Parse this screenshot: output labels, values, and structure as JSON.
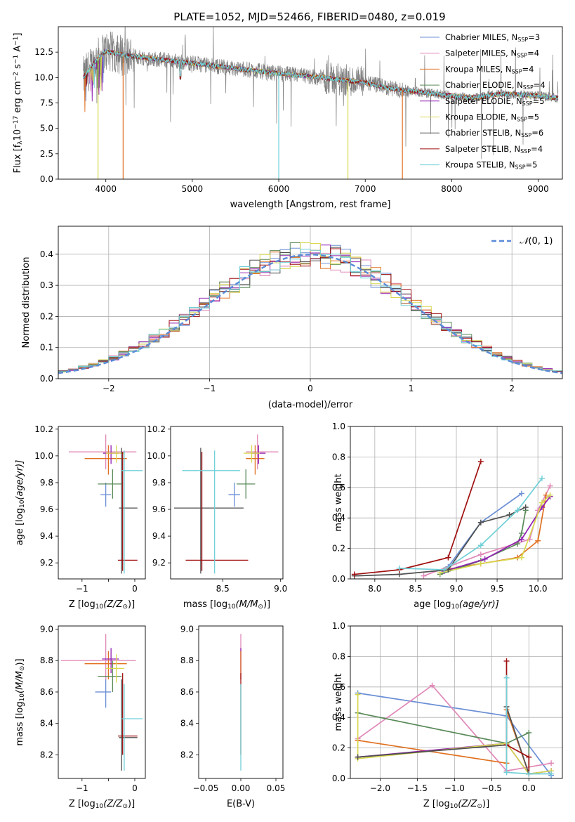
{
  "figure_title": "PLATE=1052, MJD=52466, FIBERID=0480, z=0.019",
  "models": [
    {
      "imf": "Chabrier",
      "lib": "MILES",
      "n": "3",
      "color": "#6b8fd6"
    },
    {
      "imf": "Salpeter",
      "lib": "MILES",
      "n": "4",
      "color": "#e088b8"
    },
    {
      "imf": "Kroupa",
      "lib": "MILES",
      "n": "4",
      "color": "#e07020"
    },
    {
      "imf": "Chabrier",
      "lib": "ELODIE",
      "n": "4",
      "color": "#5a8a5a"
    },
    {
      "imf": "Salpeter",
      "lib": "ELODIE",
      "n": "5",
      "color": "#9020b0"
    },
    {
      "imf": "Kroupa",
      "lib": "ELODIE",
      "n": "5",
      "color": "#d8d850"
    },
    {
      "imf": "Chabrier",
      "lib": "STELIB",
      "n": "6",
      "color": "#505050"
    },
    {
      "imf": "Salpeter",
      "lib": "STELIB",
      "n": "4",
      "color": "#a01010"
    },
    {
      "imf": "Kroupa",
      "lib": "STELIB",
      "n": "5",
      "color": "#70d0d8"
    }
  ],
  "chart_data": [
    {
      "type": "line",
      "xlabel": "wavelength [Angstrom, rest frame]",
      "ylabel_parts": [
        "Flux [f",
        "λ",
        "10",
        "−17",
        " erg cm",
        "−2",
        " s",
        "−1",
        " A",
        "−1",
        "]"
      ],
      "xlim": [
        3450,
        9280
      ],
      "ylim": [
        0,
        15
      ],
      "xticks": [
        4000,
        5000,
        6000,
        7000,
        8000,
        9000
      ],
      "yticks": [
        0.0,
        2.5,
        5.0,
        7.5,
        10.0,
        12.5
      ],
      "data_color": "#808080",
      "data_range": [
        3740,
        9230
      ],
      "continuum": [
        [
          3740,
          10.0
        ],
        [
          3900,
          11.8
        ],
        [
          4000,
          12.6
        ],
        [
          4200,
          12.2
        ],
        [
          4500,
          11.9
        ],
        [
          5000,
          11.4
        ],
        [
          5500,
          10.9
        ],
        [
          6000,
          10.4
        ],
        [
          6500,
          10.0
        ],
        [
          7000,
          9.5
        ],
        [
          7300,
          8.9
        ],
        [
          7600,
          8.6
        ],
        [
          7900,
          8.3
        ],
        [
          8200,
          8.0
        ],
        [
          8600,
          8.4
        ],
        [
          9000,
          8.2
        ],
        [
          9230,
          8.0
        ]
      ],
      "model_cutoffs": [
        {
          "color": "#e07020",
          "x": 4200
        },
        {
          "color": "#d8d850",
          "x": 3910
        },
        {
          "color": "#70d0d8",
          "x": 6000
        },
        {
          "color": "#d8d850",
          "x": 6800
        },
        {
          "color": "#e07020",
          "x": 7430
        }
      ]
    },
    {
      "type": "histogram",
      "xlabel": "(data-model)/error",
      "ylabel": "Normed distribution",
      "xlim": [
        -2.5,
        2.5
      ],
      "ylim": [
        0,
        0.49
      ],
      "xticks": [
        -2,
        -1,
        0,
        1,
        2
      ],
      "yticks": [
        0.0,
        0.1,
        0.2,
        0.3,
        0.4
      ],
      "grid": true,
      "reference_label_parts": [
        "𝒩",
        "(0, 1)"
      ],
      "reference_color": "#5b8bd8",
      "legend_placement": "top-right",
      "bin_width": 0.1
    },
    {
      "type": "errorbar",
      "xlabel_parts": [
        "Z [log",
        "10",
        "(Z/Z",
        "⊙",
        ")]"
      ],
      "ylabel_parts": [
        "age  [log",
        "10",
        "(age/yr)]"
      ],
      "xlim": [
        -1.45,
        0.2
      ],
      "ylim": [
        9.08,
        10.22
      ],
      "xticks": [
        -1,
        -0.5,
        0
      ],
      "xticklabels": [
        "−1",
        "",
        "0"
      ],
      "yticks": [
        9.2,
        9.4,
        9.6,
        9.8,
        10.0,
        10.2
      ],
      "points": [
        {
          "c": "#6b8fd6",
          "x": -0.55,
          "y": 9.71,
          "xe": [
            -0.65,
            -0.45
          ],
          "ye": [
            9.62,
            9.8
          ]
        },
        {
          "c": "#e088b8",
          "x": -0.55,
          "y": 10.03,
          "xe": [
            -1.25,
            0.03
          ],
          "ye": [
            9.9,
            10.16
          ]
        },
        {
          "c": "#e07020",
          "x": -0.5,
          "y": 9.98,
          "xe": [
            -0.95,
            -0.15
          ],
          "ye": [
            9.86,
            10.08
          ]
        },
        {
          "c": "#5a8a5a",
          "x": -0.42,
          "y": 9.79,
          "xe": [
            -0.7,
            -0.25
          ],
          "ye": [
            9.68,
            9.9
          ]
        },
        {
          "c": "#9020b0",
          "x": -0.45,
          "y": 10.02,
          "xe": [
            -0.6,
            -0.3
          ],
          "ye": [
            9.94,
            10.08
          ]
        },
        {
          "c": "#d8d850",
          "x": -0.35,
          "y": 10.02,
          "xe": [
            -0.55,
            -0.2
          ],
          "ye": [
            9.95,
            10.08
          ]
        },
        {
          "c": "#505050",
          "x": -0.25,
          "y": 9.61,
          "xe": [
            -0.3,
            0.05
          ],
          "ye": [
            9.12,
            10.06
          ]
        },
        {
          "c": "#a01010",
          "x": -0.23,
          "y": 9.22,
          "xe": [
            -0.32,
            0.05
          ],
          "ye": [
            9.14,
            10.03
          ]
        },
        {
          "c": "#70d0d8",
          "x": -0.2,
          "y": 9.89,
          "xe": [
            -0.25,
            0.15
          ],
          "ye": [
            9.12,
            10.04
          ]
        }
      ]
    },
    {
      "type": "errorbar",
      "xlabel_parts": [
        "mass [log",
        "10",
        "(M/M",
        "⊙",
        ")]"
      ],
      "xlim": [
        8.05,
        9.02
      ],
      "ylim": [
        9.08,
        10.22
      ],
      "xticks": [
        8.5,
        9.0
      ],
      "xticklabels": [
        "8.5",
        "9.0"
      ],
      "yticks": [
        9.2,
        9.4,
        9.6,
        9.8,
        10.0,
        10.2
      ],
      "points": [
        {
          "c": "#6b8fd6",
          "x": 8.6,
          "y": 9.71,
          "xe": [
            8.55,
            8.65
          ],
          "ye": [
            9.62,
            9.8
          ]
        },
        {
          "c": "#e088b8",
          "x": 8.8,
          "y": 10.03,
          "xe": [
            8.7,
            8.98
          ],
          "ye": [
            9.9,
            10.16
          ]
        },
        {
          "c": "#e07020",
          "x": 8.78,
          "y": 9.98,
          "xe": [
            8.7,
            8.86
          ],
          "ye": [
            9.86,
            10.08
          ]
        },
        {
          "c": "#5a8a5a",
          "x": 8.7,
          "y": 9.79,
          "xe": [
            8.62,
            8.78
          ],
          "ye": [
            9.68,
            9.9
          ]
        },
        {
          "c": "#9020b0",
          "x": 8.81,
          "y": 10.02,
          "xe": [
            8.75,
            8.87
          ],
          "ye": [
            9.94,
            10.08
          ]
        },
        {
          "c": "#d8d850",
          "x": 8.75,
          "y": 10.02,
          "xe": [
            8.68,
            8.82
          ],
          "ye": [
            9.95,
            10.08
          ]
        },
        {
          "c": "#505050",
          "x": 8.31,
          "y": 9.61,
          "xe": [
            8.08,
            8.68
          ],
          "ye": [
            9.12,
            10.06
          ]
        },
        {
          "c": "#a01010",
          "x": 8.32,
          "y": 9.22,
          "xe": [
            8.18,
            8.72
          ],
          "ye": [
            9.14,
            10.03
          ]
        },
        {
          "c": "#70d0d8",
          "x": 8.43,
          "y": 9.89,
          "xe": [
            8.15,
            8.65
          ],
          "ye": [
            9.12,
            10.04
          ]
        }
      ]
    },
    {
      "type": "line",
      "xlabel_parts": [
        "age  [log",
        "10",
        "(age/yr)]"
      ],
      "ylabel": "mass weight",
      "xlim": [
        7.7,
        10.3
      ],
      "ylim": [
        0,
        1
      ],
      "xticks": [
        8.0,
        8.5,
        9.0,
        9.5,
        10.0
      ],
      "yticks": [
        0.0,
        0.2,
        0.4,
        0.6,
        0.8,
        1.0
      ],
      "grid": true,
      "series": [
        {
          "color": "#6b8fd6",
          "x": [
            8.9,
            9.3,
            9.8
          ],
          "y": [
            0.08,
            0.37,
            0.56
          ]
        },
        {
          "color": "#e088b8",
          "x": [
            8.6,
            9.3,
            9.9,
            10.0,
            10.15
          ],
          "y": [
            0.02,
            0.16,
            0.26,
            0.45,
            0.61
          ]
        },
        {
          "color": "#e07020",
          "x": [
            8.85,
            9.3,
            9.75,
            10.0,
            10.1
          ],
          "y": [
            0.06,
            0.1,
            0.14,
            0.25,
            0.55
          ]
        },
        {
          "color": "#5a8a5a",
          "x": [
            8.8,
            9.3,
            9.75,
            9.8,
            9.85
          ],
          "y": [
            0.03,
            0.12,
            0.23,
            0.3,
            0.45
          ]
        },
        {
          "color": "#9020b0",
          "x": [
            8.85,
            9.35,
            9.8,
            10.05,
            10.15
          ],
          "y": [
            0.05,
            0.13,
            0.26,
            0.47,
            0.54
          ]
        },
        {
          "color": "#d8d850",
          "x": [
            8.8,
            9.3,
            9.8,
            10.05,
            10.15
          ],
          "y": [
            0.04,
            0.1,
            0.14,
            0.5,
            0.55
          ]
        },
        {
          "color": "#505050",
          "x": [
            7.75,
            8.3,
            8.9,
            9.3,
            9.65,
            9.85
          ],
          "y": [
            0.02,
            0.03,
            0.06,
            0.37,
            0.42,
            0.47
          ]
        },
        {
          "color": "#a01010",
          "x": [
            7.75,
            8.3,
            8.9,
            9.3
          ],
          "y": [
            0.03,
            0.06,
            0.14,
            0.77
          ]
        },
        {
          "color": "#70d0d8",
          "x": [
            8.3,
            8.85,
            9.3,
            9.75,
            10.05
          ],
          "y": [
            0.07,
            0.06,
            0.22,
            0.45,
            0.66
          ]
        }
      ]
    },
    {
      "type": "errorbar",
      "xlabel_parts": [
        "Z [log",
        "10",
        "(Z/Z",
        "⊙",
        ")]"
      ],
      "ylabel_parts": [
        "mass [log",
        "10",
        "(M/M",
        "⊙",
        ")]"
      ],
      "xlim": [
        -1.45,
        0.2
      ],
      "ylim": [
        8.05,
        9.02
      ],
      "xticks": [
        -1,
        -0.5,
        0
      ],
      "xticklabels": [
        "−1",
        "",
        "0"
      ],
      "yticks": [
        8.2,
        8.4,
        8.6,
        8.8,
        9.0
      ],
      "points": [
        {
          "c": "#6b8fd6",
          "x": -0.55,
          "y": 8.6,
          "xe": [
            -0.75,
            -0.45
          ],
          "ye": [
            8.5,
            8.7
          ]
        },
        {
          "c": "#e088b8",
          "x": -0.55,
          "y": 8.8,
          "xe": [
            -1.4,
            0.02
          ],
          "ye": [
            8.68,
            8.97
          ]
        },
        {
          "c": "#e07020",
          "x": -0.5,
          "y": 8.78,
          "xe": [
            -0.95,
            -0.15
          ],
          "ye": [
            8.68,
            8.86
          ]
        },
        {
          "c": "#5a8a5a",
          "x": -0.42,
          "y": 8.7,
          "xe": [
            -0.7,
            -0.25
          ],
          "ye": [
            8.6,
            8.8
          ]
        },
        {
          "c": "#9020b0",
          "x": -0.45,
          "y": 8.81,
          "xe": [
            -0.62,
            -0.3
          ],
          "ye": [
            8.72,
            8.88
          ]
        },
        {
          "c": "#d8d850",
          "x": -0.35,
          "y": 8.75,
          "xe": [
            -0.55,
            -0.2
          ],
          "ye": [
            8.66,
            8.84
          ]
        },
        {
          "c": "#505050",
          "x": -0.25,
          "y": 8.31,
          "xe": [
            -0.3,
            0.05
          ],
          "ye": [
            8.1,
            8.68
          ]
        },
        {
          "c": "#a01010",
          "x": -0.23,
          "y": 8.32,
          "xe": [
            -0.32,
            0.05
          ],
          "ye": [
            8.2,
            8.72
          ]
        },
        {
          "c": "#70d0d8",
          "x": -0.2,
          "y": 8.43,
          "xe": [
            -0.25,
            0.15
          ],
          "ye": [
            8.1,
            8.65
          ]
        }
      ]
    },
    {
      "type": "errorbar",
      "xlabel": "E(B-V)",
      "xlim": [
        -0.06,
        0.06
      ],
      "ylim": [
        8.05,
        9.02
      ],
      "xticks": [
        -0.05,
        0,
        0.05
      ],
      "xticklabels": [
        "−0.05",
        "0.00",
        "0.05"
      ],
      "yticks": [
        8.2,
        8.4,
        8.6,
        8.8,
        9.0
      ],
      "points": [
        {
          "c": "#e088b8",
          "x": 0,
          "y": 8.8,
          "xe": [
            0,
            0
          ],
          "ye": [
            8.68,
            8.97
          ]
        },
        {
          "c": "#9020b0",
          "x": 0,
          "y": 8.81,
          "xe": [
            0,
            0
          ],
          "ye": [
            8.72,
            8.88
          ]
        },
        {
          "c": "#e07020",
          "x": 0,
          "y": 8.78,
          "xe": [
            0,
            0
          ],
          "ye": [
            8.68,
            8.86
          ]
        },
        {
          "c": "#a01010",
          "x": 0,
          "y": 8.32,
          "xe": [
            0,
            0
          ],
          "ye": [
            8.2,
            8.72
          ]
        },
        {
          "c": "#70d0d8",
          "x": 0,
          "y": 8.43,
          "xe": [
            0,
            0
          ],
          "ye": [
            8.1,
            8.65
          ]
        }
      ]
    },
    {
      "type": "line",
      "xlabel_parts": [
        "Z [log",
        "10",
        "(Z/Z",
        "⊙",
        ")]"
      ],
      "ylabel": "mass weight",
      "xlim": [
        -2.4,
        0.45
      ],
      "ylim": [
        0,
        1
      ],
      "xticks": [
        -2.0,
        -1.5,
        -1.0,
        -0.5,
        0.0
      ],
      "xticklabels": [
        "−2.0",
        "−1.5",
        "−1.0",
        "−0.5",
        "0.0"
      ],
      "yticks": [
        0.0,
        0.2,
        0.4,
        0.6,
        0.8,
        1.0
      ],
      "grid": true,
      "series": [
        {
          "color": "#6b8fd6",
          "x": [
            -2.3,
            -0.3,
            0.3
          ],
          "y": [
            0.56,
            0.41,
            0.02
          ]
        },
        {
          "color": "#e088b8",
          "x": [
            -2.3,
            -1.3,
            -0.3,
            0.3
          ],
          "y": [
            0.26,
            0.61,
            0.05,
            0.1
          ]
        },
        {
          "color": "#e07020",
          "x": [
            -2.3,
            -0.3,
            -0.3,
            0.0
          ],
          "y": [
            0.25,
            0.1,
            0.45,
            0.03
          ]
        },
        {
          "color": "#5a8a5a",
          "x": [
            -2.3,
            -0.3,
            0.0,
            0.0
          ],
          "y": [
            0.43,
            0.23,
            0.3,
            0.03
          ]
        },
        {
          "color": "#9020b0",
          "x": [
            -2.3,
            -0.3,
            0.0,
            0.3
          ],
          "y": [
            0.14,
            0.23,
            0.03,
            0.05
          ]
        },
        {
          "color": "#d8d850",
          "x": [
            -2.3,
            -2.3,
            -0.3,
            0.0,
            0.3
          ],
          "y": [
            0.55,
            0.13,
            0.23,
            0.03,
            0.05
          ]
        },
        {
          "color": "#505050",
          "x": [
            -2.3,
            -0.3,
            -0.3,
            0.0
          ],
          "y": [
            0.14,
            0.22,
            0.47,
            0.03
          ]
        },
        {
          "color": "#a01010",
          "x": [
            -0.3,
            -0.3,
            0.0,
            0.0
          ],
          "y": [
            0.77,
            0.22,
            0.14,
            0.03
          ]
        },
        {
          "color": "#70d0d8",
          "x": [
            -0.3,
            -0.3,
            0.0,
            0.3
          ],
          "y": [
            0.66,
            0.04,
            0.03,
            0.03
          ]
        }
      ]
    }
  ]
}
